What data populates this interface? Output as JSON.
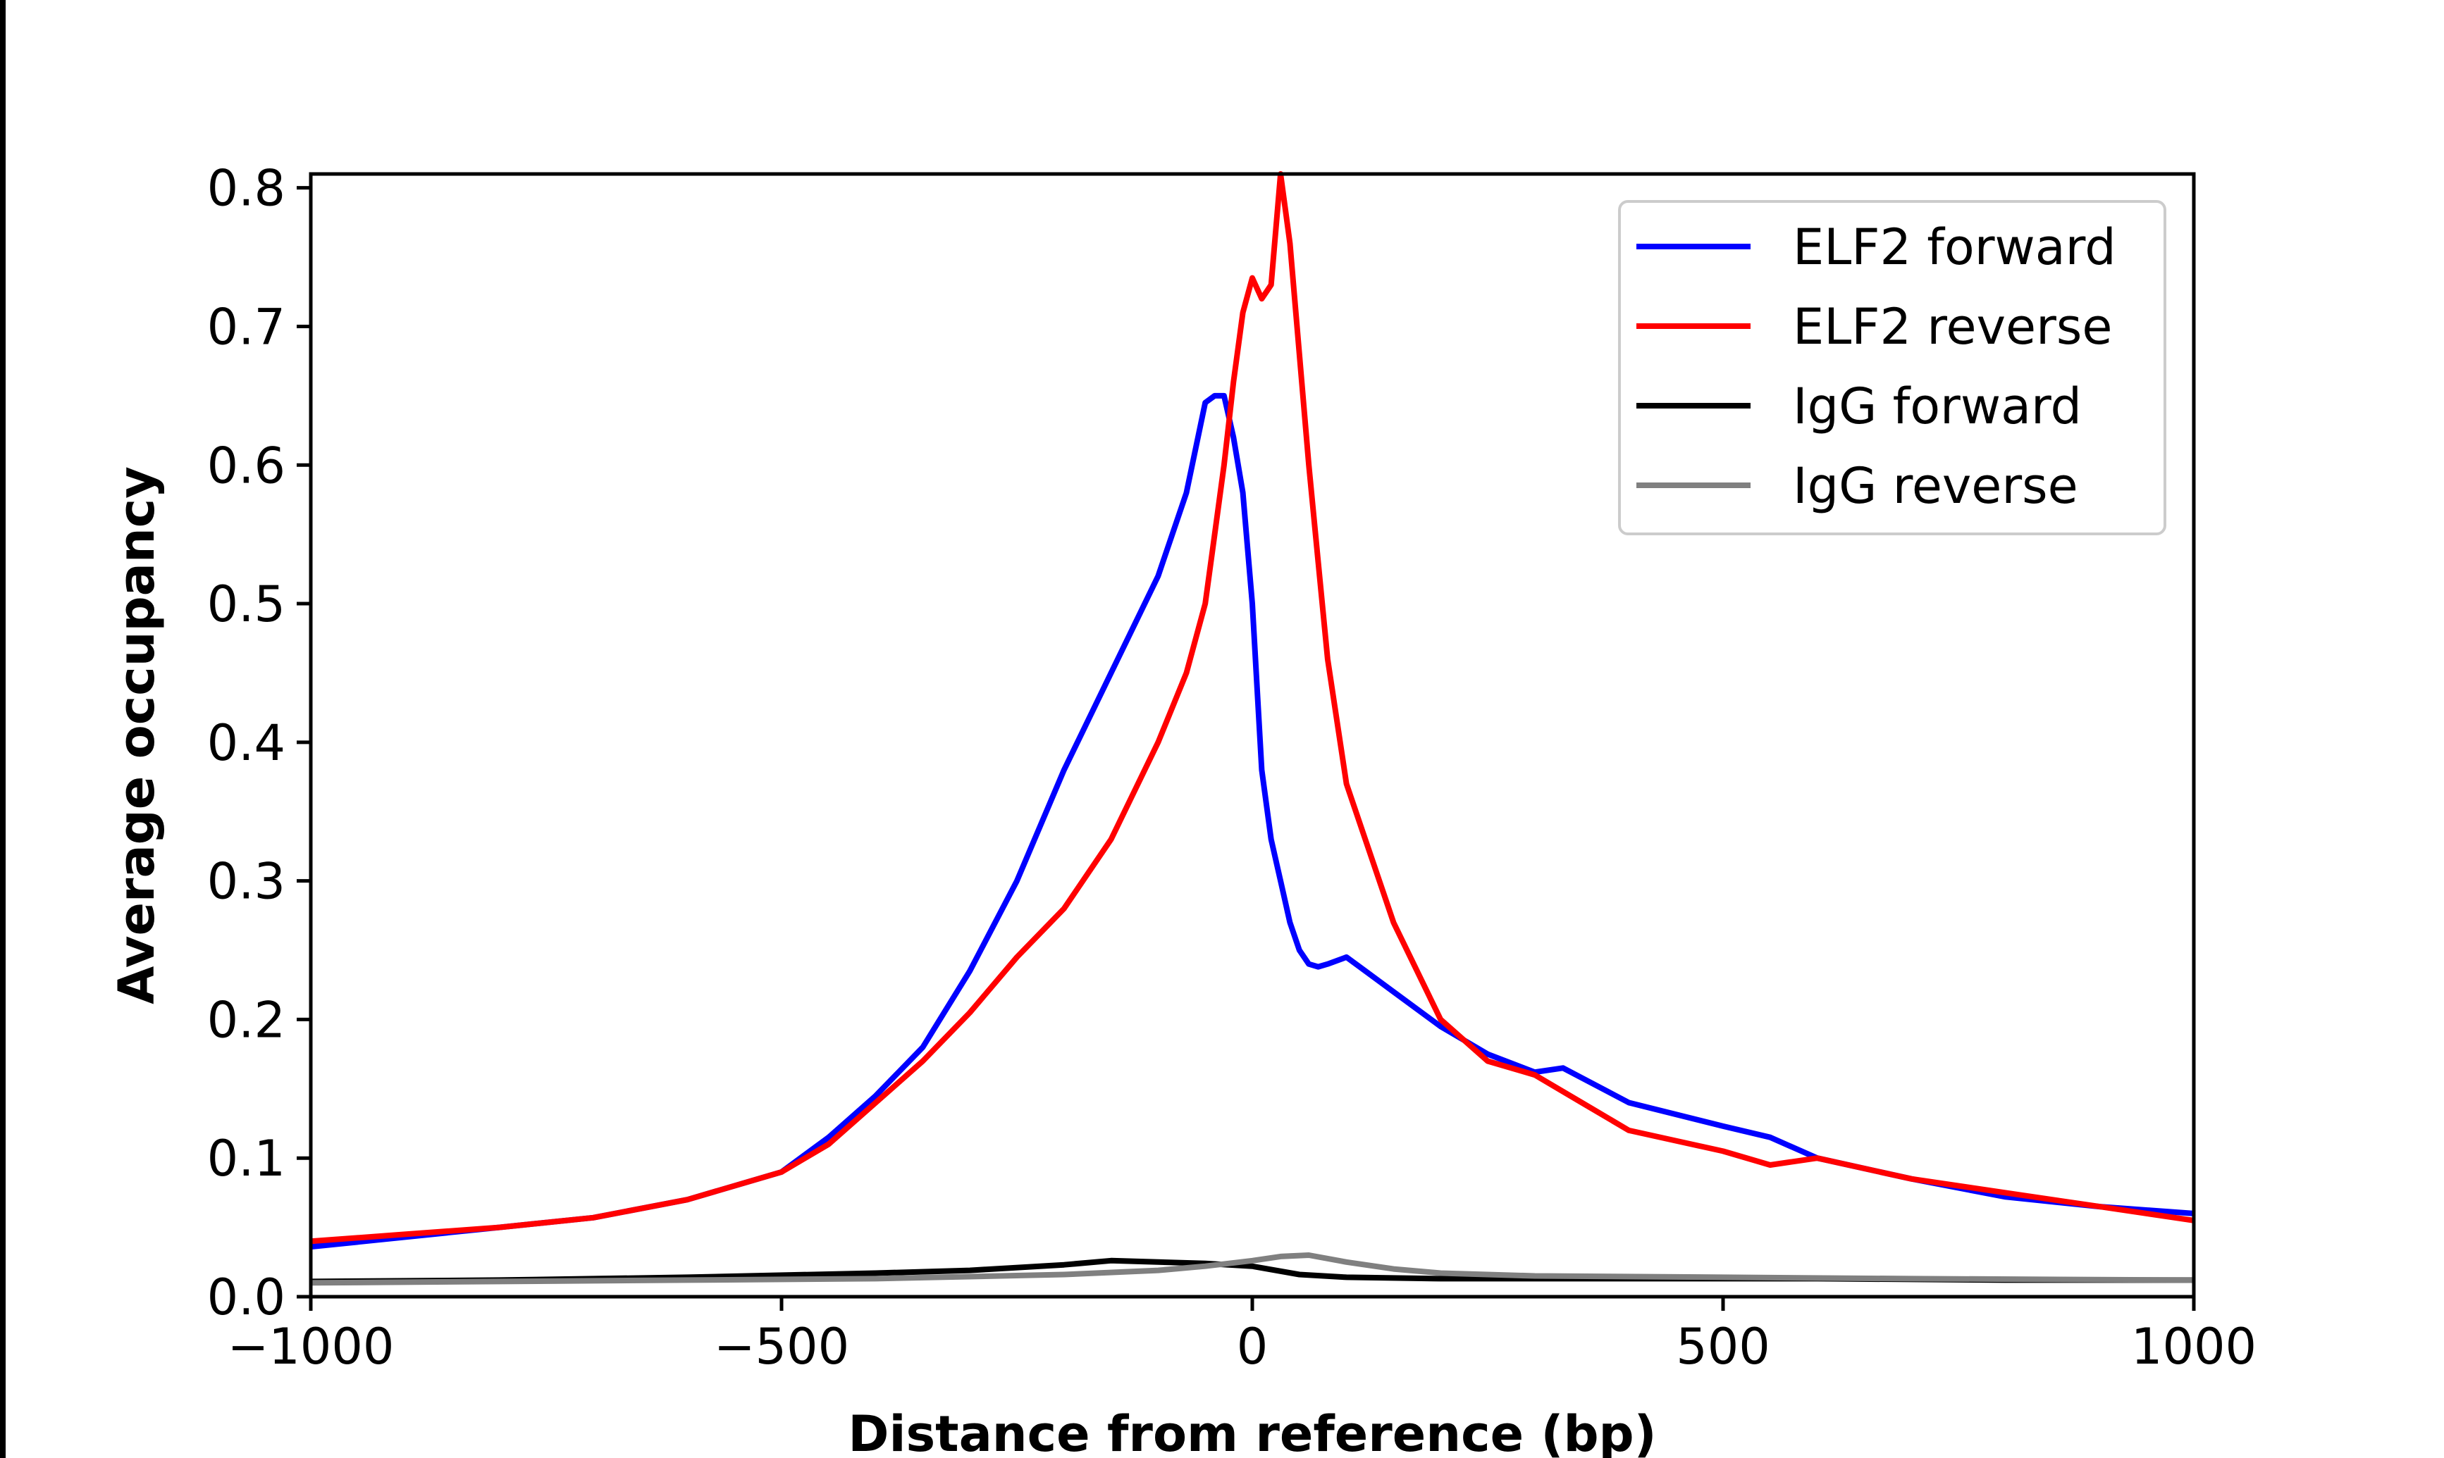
{
  "colors": {
    "elf2_forward": "#0000ff",
    "elf2_reverse": "#ff0000",
    "igg_forward": "#000000",
    "igg_reverse": "#808080"
  },
  "chart_data": {
    "type": "line",
    "title": "",
    "xlabel": "Distance from reference (bp)",
    "ylabel": "Average occupancy",
    "xlim": [
      -1000,
      1000
    ],
    "ylim": [
      0,
      0.81
    ],
    "x_ticks": [
      -1000,
      -500,
      0,
      500,
      1000
    ],
    "x_tick_labels": [
      "−1000",
      "−500",
      "0",
      "500",
      "1000"
    ],
    "y_ticks": [
      0.0,
      0.1,
      0.2,
      0.3,
      0.4,
      0.5,
      0.6,
      0.7,
      0.8
    ],
    "y_tick_labels": [
      "0.0",
      "0.1",
      "0.2",
      "0.3",
      "0.4",
      "0.5",
      "0.6",
      "0.7",
      "0.8"
    ],
    "grid": false,
    "legend_position": "top-right",
    "series": [
      {
        "name": "ELF2 forward",
        "color": "#0000ff",
        "x": [
          -1000,
          -900,
          -800,
          -700,
          -600,
          -500,
          -450,
          -400,
          -350,
          -300,
          -250,
          -200,
          -150,
          -100,
          -70,
          -50,
          -40,
          -30,
          -20,
          -10,
          0,
          10,
          20,
          30,
          40,
          50,
          60,
          70,
          80,
          100,
          120,
          150,
          200,
          250,
          300,
          330,
          400,
          500,
          550,
          600,
          700,
          800,
          900,
          1000
        ],
        "y": [
          0.036,
          0.043,
          0.05,
          0.057,
          0.07,
          0.09,
          0.115,
          0.145,
          0.18,
          0.235,
          0.3,
          0.38,
          0.45,
          0.52,
          0.58,
          0.645,
          0.65,
          0.65,
          0.62,
          0.58,
          0.5,
          0.38,
          0.33,
          0.3,
          0.27,
          0.25,
          0.24,
          0.238,
          0.24,
          0.245,
          0.235,
          0.22,
          0.195,
          0.175,
          0.162,
          0.165,
          0.14,
          0.123,
          0.115,
          0.1,
          0.085,
          0.072,
          0.065,
          0.06
        ]
      },
      {
        "name": "ELF2 reverse",
        "color": "#ff0000",
        "x": [
          -1000,
          -900,
          -800,
          -700,
          -600,
          -500,
          -450,
          -400,
          -350,
          -300,
          -250,
          -200,
          -150,
          -100,
          -70,
          -50,
          -40,
          -30,
          -20,
          -10,
          0,
          10,
          20,
          30,
          40,
          50,
          60,
          70,
          80,
          100,
          120,
          150,
          200,
          250,
          300,
          350,
          400,
          500,
          550,
          600,
          700,
          800,
          900,
          1000
        ],
        "y": [
          0.04,
          0.045,
          0.05,
          0.057,
          0.07,
          0.09,
          0.11,
          0.14,
          0.17,
          0.205,
          0.245,
          0.28,
          0.33,
          0.4,
          0.45,
          0.5,
          0.55,
          0.6,
          0.66,
          0.71,
          0.735,
          0.72,
          0.73,
          0.81,
          0.76,
          0.68,
          0.6,
          0.53,
          0.46,
          0.37,
          0.33,
          0.27,
          0.2,
          0.17,
          0.16,
          0.14,
          0.12,
          0.105,
          0.095,
          0.1,
          0.085,
          0.075,
          0.065,
          0.055
        ]
      },
      {
        "name": "IgG forward",
        "color": "#000000",
        "x": [
          -1000,
          -800,
          -600,
          -400,
          -300,
          -200,
          -150,
          -100,
          -50,
          0,
          50,
          100,
          200,
          400,
          600,
          800,
          1000
        ],
        "y": [
          0.011,
          0.012,
          0.014,
          0.017,
          0.019,
          0.023,
          0.026,
          0.025,
          0.024,
          0.022,
          0.016,
          0.014,
          0.013,
          0.013,
          0.013,
          0.012,
          0.012
        ]
      },
      {
        "name": "IgG reverse",
        "color": "#808080",
        "x": [
          -1000,
          -800,
          -600,
          -400,
          -200,
          -100,
          -50,
          0,
          30,
          60,
          100,
          150,
          200,
          300,
          500,
          700,
          1000
        ],
        "y": [
          0.01,
          0.011,
          0.012,
          0.013,
          0.016,
          0.019,
          0.022,
          0.026,
          0.029,
          0.03,
          0.025,
          0.02,
          0.017,
          0.015,
          0.014,
          0.013,
          0.012
        ]
      }
    ]
  }
}
